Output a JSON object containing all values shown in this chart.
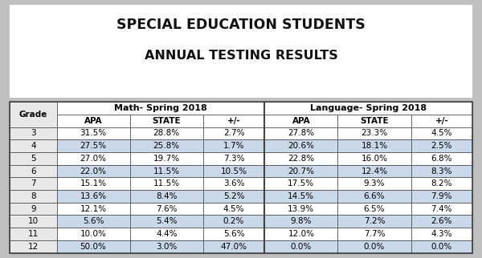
{
  "title_line1": "SPECIAL EDUCATION STUDENTS",
  "title_line2": "ANNUAL TESTING RESULTS",
  "col_headers_group": [
    "Math- Spring 2018",
    "Language- Spring 2018"
  ],
  "col_headers_sub": [
    "APA",
    "STATE",
    "+/-",
    "APA",
    "STATE",
    "+/-"
  ],
  "grades": [
    "3",
    "4",
    "5",
    "6",
    "7",
    "8",
    "9",
    "10",
    "11",
    "12"
  ],
  "math_apa": [
    "31.5%",
    "27.5%",
    "27.0%",
    "22.0%",
    "15.1%",
    "13.6%",
    "12.1%",
    "5.6%",
    "10.0%",
    "50.0%"
  ],
  "math_state": [
    "28.8%",
    "25.8%",
    "19.7%",
    "11.5%",
    "11.5%",
    "8.4%",
    "7.6%",
    "5.4%",
    "4.4%",
    "3.0%"
  ],
  "math_pm": [
    "2.7%",
    "1.7%",
    "7.3%",
    "10.5%",
    "3.6%",
    "5.2%",
    "4.5%",
    "0.2%",
    "5.6%",
    "47.0%"
  ],
  "lang_apa": [
    "27.8%",
    "20.6%",
    "22.8%",
    "20.7%",
    "17.5%",
    "14.5%",
    "13.9%",
    "9.8%",
    "12.0%",
    "0.0%"
  ],
  "lang_state": [
    "23.3%",
    "18.1%",
    "16.0%",
    "12.4%",
    "9.3%",
    "6.6%",
    "6.5%",
    "7.2%",
    "7.7%",
    "0.0%"
  ],
  "lang_pm": [
    "4.5%",
    "2.5%",
    "6.8%",
    "8.3%",
    "8.2%",
    "7.9%",
    "7.4%",
    "2.6%",
    "4.3%",
    "0.0%"
  ],
  "row_blue_color": "#c9d9ea",
  "row_white_color": "#ffffff",
  "header_bg": "#ffffff",
  "grade_col_bg": "#e8e8e8",
  "border_color": "#444444",
  "title_color": "#111111",
  "body_bg": "#c0c0c0",
  "title_bg": "#ffffff"
}
